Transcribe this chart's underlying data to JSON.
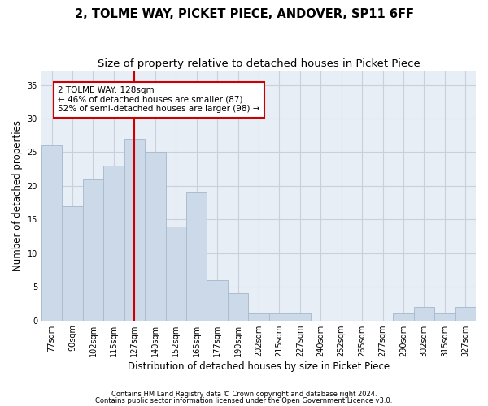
{
  "title": "2, TOLME WAY, PICKET PIECE, ANDOVER, SP11 6FF",
  "subtitle": "Size of property relative to detached houses in Picket Piece",
  "xlabel": "Distribution of detached houses by size in Picket Piece",
  "ylabel": "Number of detached properties",
  "categories": [
    "77sqm",
    "90sqm",
    "102sqm",
    "115sqm",
    "127sqm",
    "140sqm",
    "152sqm",
    "165sqm",
    "177sqm",
    "190sqm",
    "202sqm",
    "215sqm",
    "227sqm",
    "240sqm",
    "252sqm",
    "265sqm",
    "277sqm",
    "290sqm",
    "302sqm",
    "315sqm",
    "327sqm"
  ],
  "values": [
    26,
    17,
    21,
    23,
    27,
    25,
    14,
    19,
    6,
    4,
    1,
    1,
    1,
    0,
    0,
    0,
    0,
    1,
    2,
    1,
    2
  ],
  "bar_color": "#ccd9e8",
  "bar_edge_color": "#aabcce",
  "vline_index": 4,
  "vline_color": "#cc0000",
  "annotation_line1": "2 TOLME WAY: 128sqm",
  "annotation_line2": "← 46% of detached houses are smaller (87)",
  "annotation_line3": "52% of semi-detached houses are larger (98) →",
  "annotation_box_color": "#cc0000",
  "ylim": [
    0,
    37
  ],
  "yticks": [
    0,
    5,
    10,
    15,
    20,
    25,
    30,
    35
  ],
  "grid_color": "#c8d0dc",
  "background_color": "#ffffff",
  "axes_facecolor": "#e8eef5",
  "footer1": "Contains HM Land Registry data © Crown copyright and database right 2024.",
  "footer2": "Contains public sector information licensed under the Open Government Licence v3.0.",
  "title_fontsize": 10.5,
  "subtitle_fontsize": 9.5,
  "tick_fontsize": 7,
  "ylabel_fontsize": 8.5,
  "xlabel_fontsize": 8.5,
  "annotation_fontsize": 7.5,
  "footer_fontsize": 6
}
